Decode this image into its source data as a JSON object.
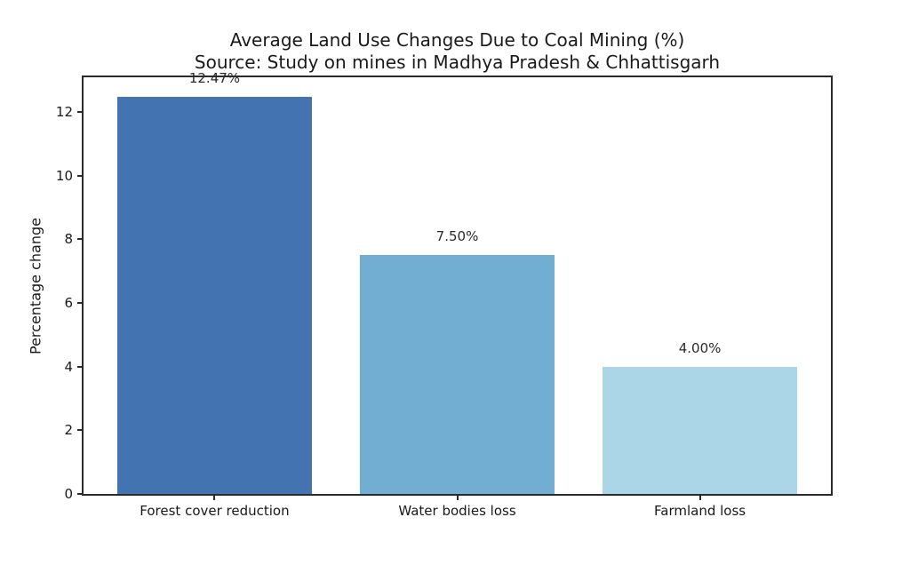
{
  "chart_data": {
    "type": "bar",
    "title": "Average Land Use Changes Due to Coal Mining (%)",
    "subtitle": "Source: Study on mines in Madhya Pradesh & Chhattisgarh",
    "categories": [
      "Forest cover reduction",
      "Water bodies loss",
      "Farmland loss"
    ],
    "values": [
      12.47,
      7.5,
      4.0
    ],
    "bar_labels": [
      "12.47%",
      "7.50%",
      "4.00%"
    ],
    "bar_colors": [
      "#4473b2",
      "#72add2",
      "#aad6e8"
    ],
    "xlabel": "",
    "ylabel": "Percentage change",
    "yticks": [
      0,
      2,
      4,
      6,
      8,
      10,
      12
    ],
    "ylim": [
      0,
      13.09
    ],
    "xlim": [
      -0.54,
      2.54
    ],
    "bar_width": 0.8,
    "grid": false,
    "legend": "none",
    "background_color": "#ffffff",
    "spine_color": "#2b2b2b",
    "text_color": "#1a1a1a"
  }
}
